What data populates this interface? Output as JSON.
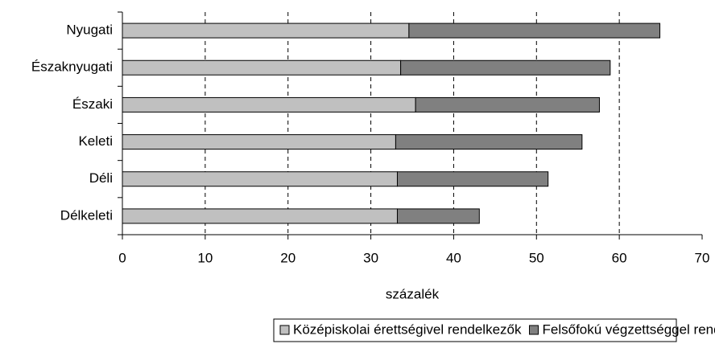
{
  "chart_data": {
    "type": "stacked_barh",
    "categories": [
      "Nyugati",
      "Északnyugati",
      "Északi",
      "Keleti",
      "Déli",
      "Délkeleti"
    ],
    "series": [
      {
        "name": "Középiskolai érettségivel rendelkezők",
        "color": "#c0c0c0",
        "values": [
          34.6,
          33.6,
          35.4,
          33.0,
          33.2,
          33.2
        ]
      },
      {
        "name": "Felsőfokú végzettséggel rendelkezők",
        "color": "#808080",
        "values": [
          30.3,
          25.3,
          22.2,
          22.5,
          18.2,
          9.9
        ]
      }
    ],
    "xlabel": "százalék",
    "xlim": [
      0,
      70
    ],
    "xticks": [
      0,
      10,
      20,
      30,
      40,
      50,
      60,
      70
    ],
    "grid": true,
    "legend": "bottom"
  }
}
